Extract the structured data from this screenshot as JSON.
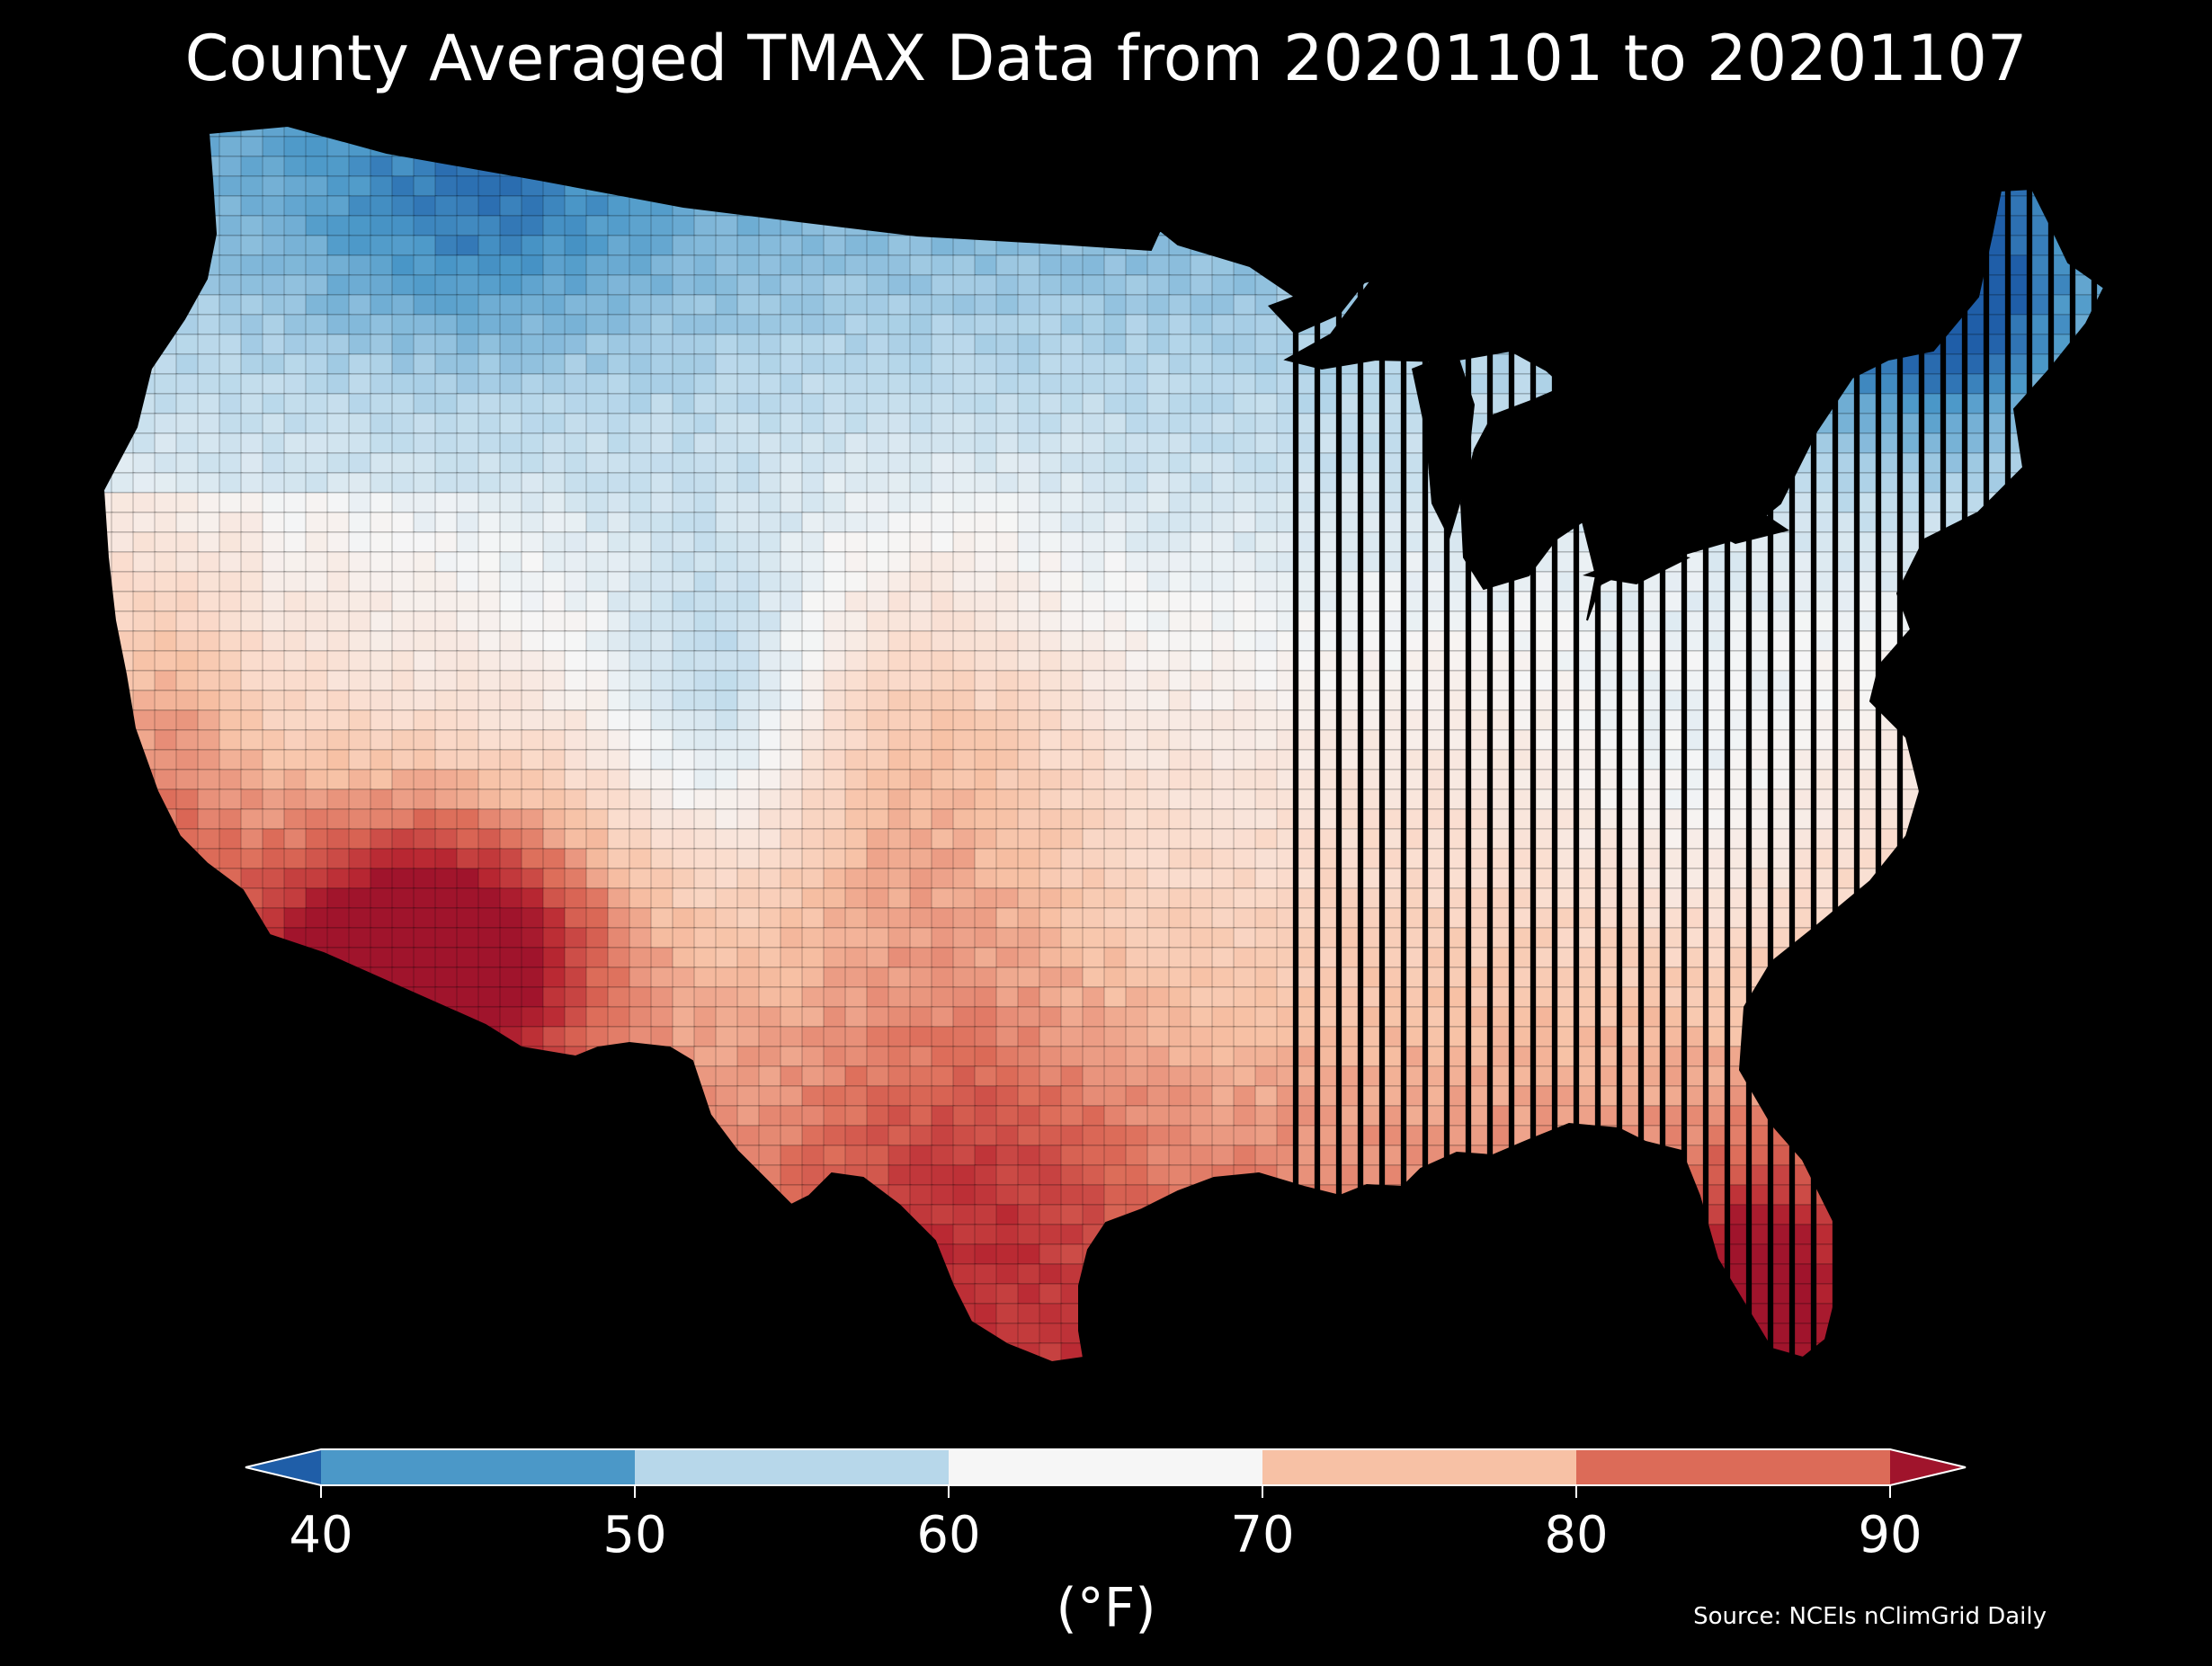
{
  "title": "County Averaged TMAX Data from 20201101 to 20201107",
  "source": "Source: NCEIs nClimGrid Daily",
  "colorbar": {
    "unit_label": "(°F)",
    "ticks": [
      "40",
      "50",
      "60",
      "70",
      "80",
      "90"
    ],
    "bins": [
      {
        "range": [
          40,
          50
        ],
        "color": "#4b98c8"
      },
      {
        "range": [
          50,
          60
        ],
        "color": "#b7d7ea"
      },
      {
        "range": [
          60,
          70
        ],
        "color": "#f6f6f6"
      },
      {
        "range": [
          70,
          80
        ],
        "color": "#f7c1a5"
      },
      {
        "range": [
          80,
          90
        ],
        "color": "#dc6b58"
      }
    ],
    "under_color": "#1f5ea8",
    "over_color": "#a0142c",
    "extend": "both"
  },
  "map": {
    "type": "choropleth",
    "region": "Contiguous United States",
    "unit": "county",
    "variable": "TMAX",
    "background_color": "#000000",
    "border_color": "#000000"
  }
}
